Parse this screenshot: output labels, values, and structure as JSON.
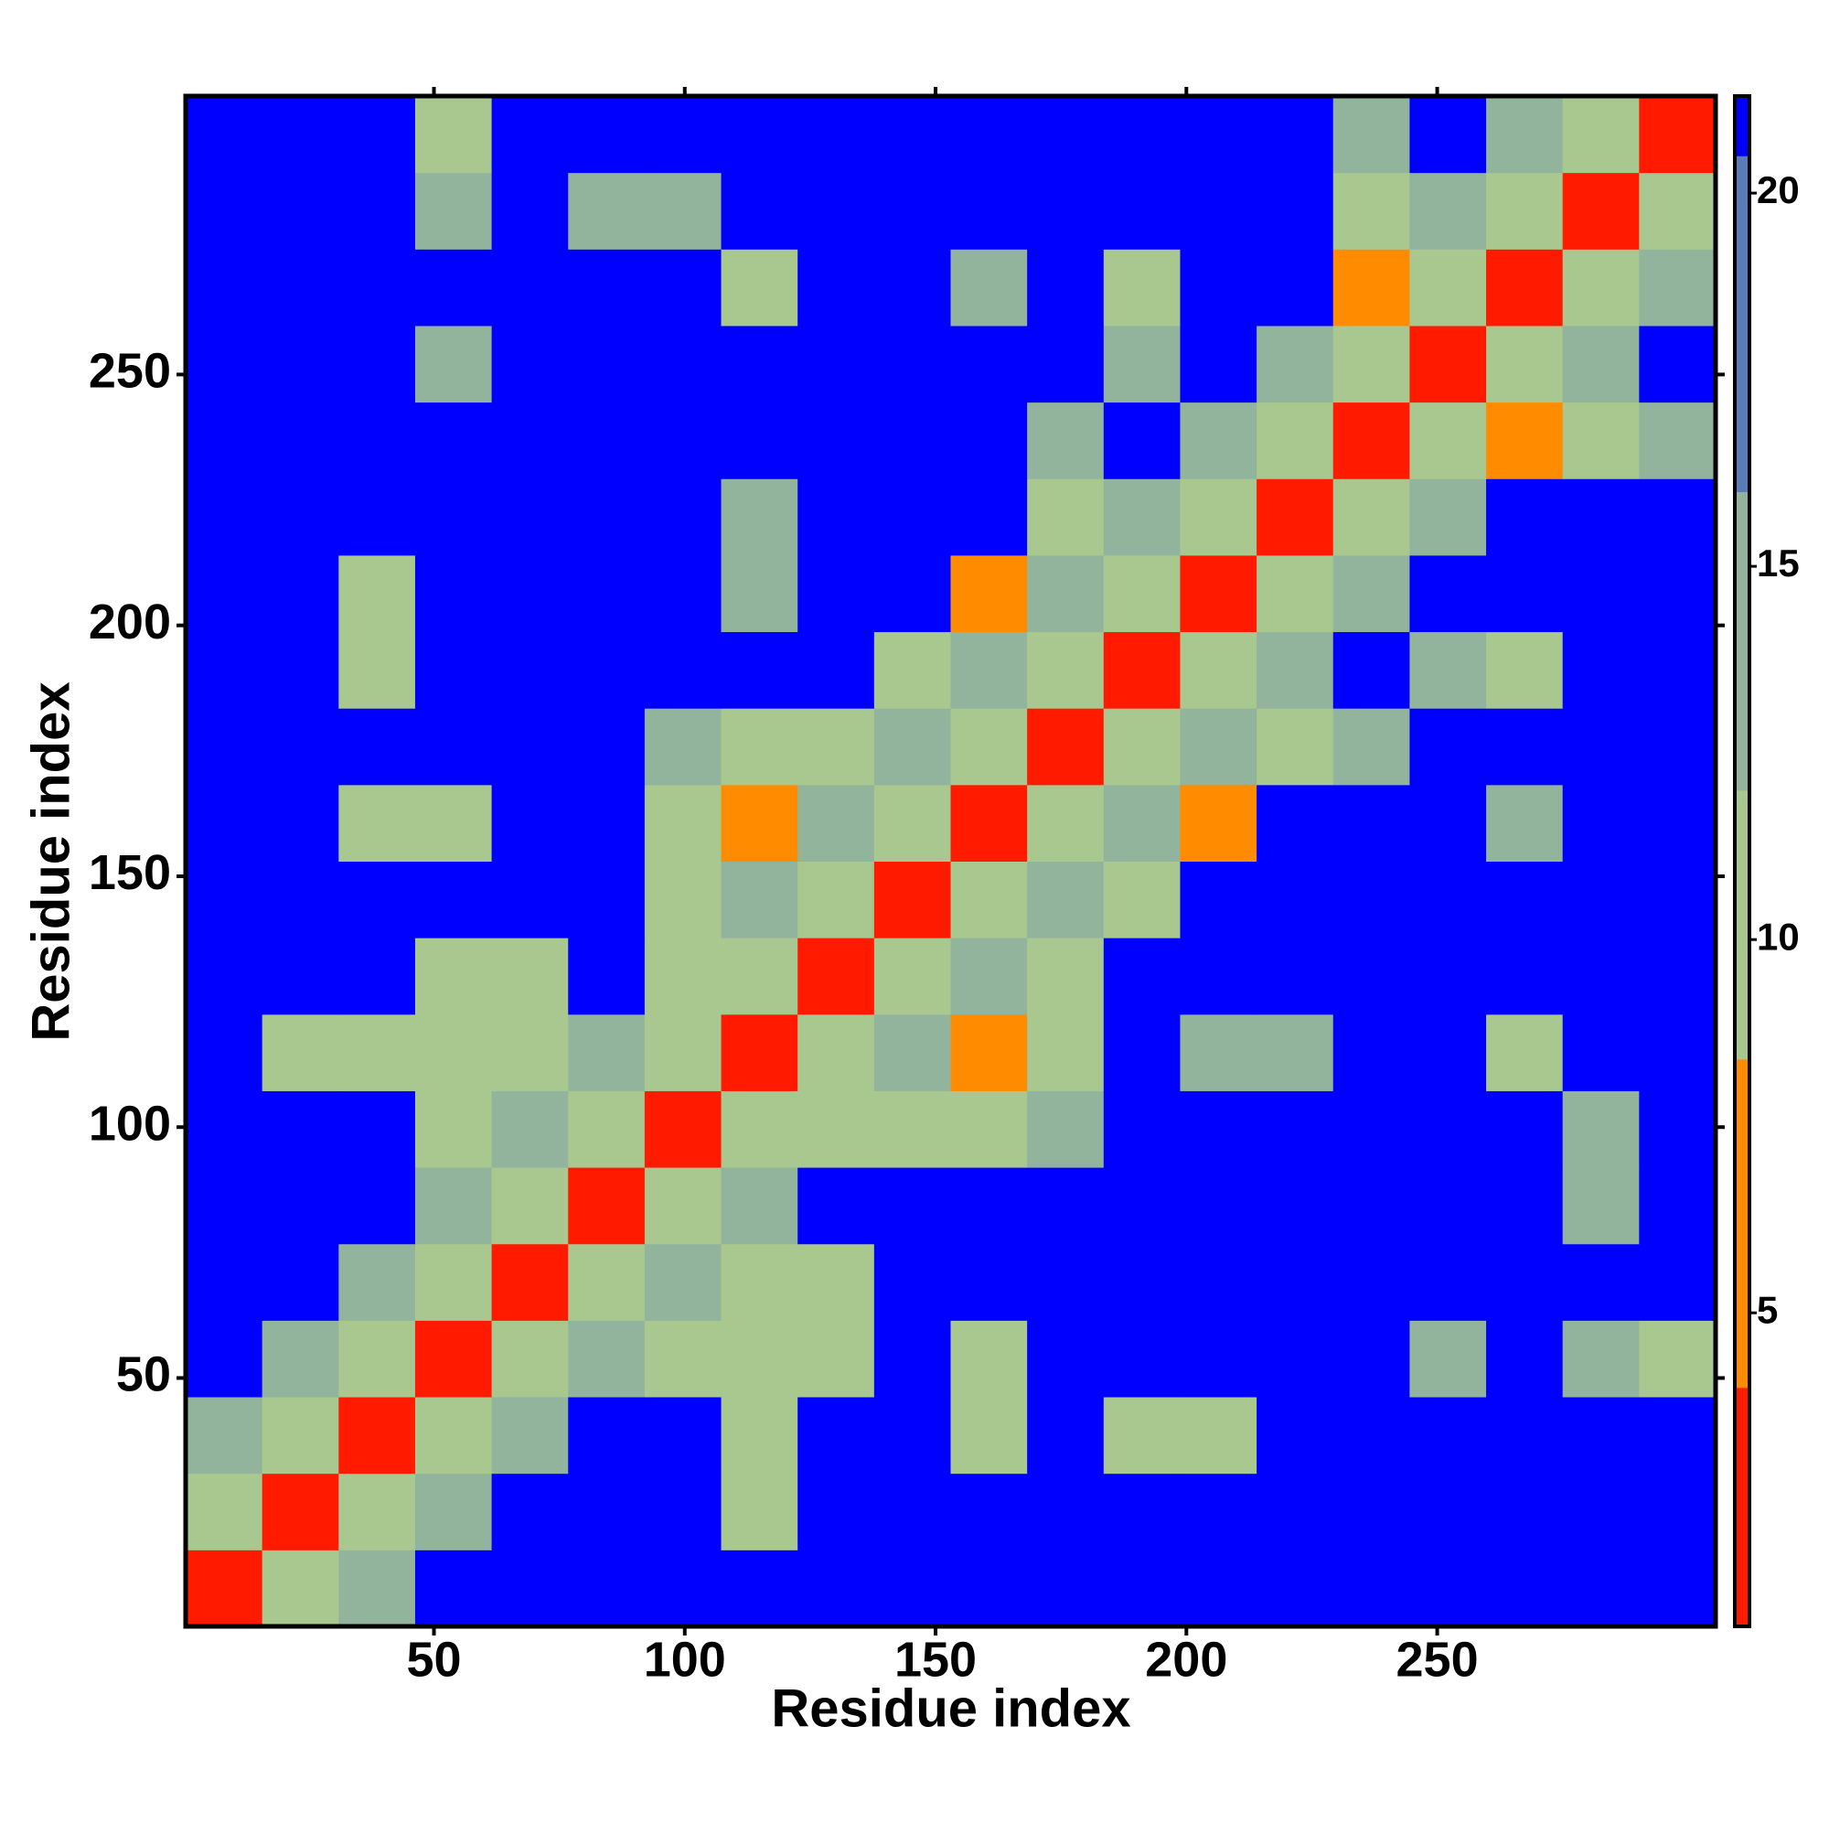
{
  "chart_data": {
    "type": "heatmap",
    "xlabel": "Residue index",
    "ylabel": "Residue index",
    "bins": [
      0.5,
      15.75,
      31,
      46.25,
      61.5,
      76.75,
      92,
      107.25,
      122.5,
      137.75,
      153,
      168.25,
      183.5,
      198.75,
      214,
      229.25,
      244.5,
      259.75,
      275,
      290.25,
      305.5
    ],
    "values": [
      [
        3,
        10,
        14,
        21,
        21,
        21,
        21,
        21,
        21,
        21,
        21,
        21,
        21,
        21,
        21,
        21,
        21,
        21,
        21,
        21
      ],
      [
        10,
        3,
        10,
        14,
        21,
        21,
        21,
        12,
        21,
        21,
        21,
        21,
        21,
        21,
        21,
        21,
        21,
        21,
        21,
        21
      ],
      [
        14,
        10,
        3,
        10,
        14,
        21,
        21,
        11,
        21,
        21,
        10,
        21,
        10,
        10,
        21,
        21,
        21,
        21,
        21,
        21
      ],
      [
        21,
        14,
        10,
        3,
        10,
        14,
        11,
        9,
        11,
        21,
        12,
        21,
        21,
        21,
        21,
        21,
        13,
        21,
        14,
        10
      ],
      [
        21,
        21,
        14,
        10,
        3,
        10,
        14,
        11,
        11,
        21,
        21,
        21,
        21,
        21,
        21,
        21,
        21,
        21,
        21,
        21
      ],
      [
        21,
        21,
        21,
        14,
        10,
        3,
        10,
        14,
        21,
        21,
        21,
        21,
        21,
        21,
        21,
        21,
        21,
        21,
        14,
        21
      ],
      [
        21,
        21,
        21,
        11,
        14,
        10,
        3,
        10,
        11,
        10,
        11,
        13,
        21,
        21,
        21,
        21,
        21,
        21,
        13,
        21
      ],
      [
        21,
        12,
        11,
        9,
        11,
        14,
        10,
        3,
        10,
        14,
        8,
        12,
        21,
        13,
        14,
        21,
        21,
        12,
        21,
        21
      ],
      [
        21,
        21,
        21,
        11,
        11,
        21,
        11,
        10,
        3,
        10,
        14,
        12,
        21,
        21,
        21,
        21,
        21,
        21,
        21,
        21
      ],
      [
        21,
        21,
        21,
        21,
        21,
        21,
        10,
        14,
        10,
        3,
        10,
        14,
        11,
        21,
        21,
        21,
        21,
        21,
        21,
        21
      ],
      [
        21,
        21,
        10,
        12,
        21,
        21,
        11,
        8,
        14,
        10,
        3,
        10,
        14,
        8,
        21,
        21,
        21,
        13,
        21,
        21
      ],
      [
        21,
        21,
        21,
        21,
        21,
        21,
        13,
        12,
        12,
        14,
        10,
        3,
        10,
        14,
        10,
        14,
        21,
        21,
        21,
        21
      ],
      [
        21,
        21,
        10,
        21,
        21,
        21,
        21,
        21,
        21,
        11,
        14,
        10,
        3,
        10,
        14,
        21,
        13,
        11,
        21,
        21
      ],
      [
        21,
        21,
        10,
        21,
        21,
        21,
        21,
        13,
        21,
        21,
        8,
        14,
        10,
        3,
        10,
        14,
        21,
        21,
        21,
        21
      ],
      [
        21,
        21,
        21,
        21,
        21,
        21,
        21,
        14,
        21,
        21,
        21,
        10,
        14,
        10,
        3,
        10,
        15,
        21,
        21,
        21
      ],
      [
        21,
        21,
        21,
        21,
        21,
        21,
        21,
        21,
        21,
        21,
        21,
        14,
        21,
        14,
        10,
        3,
        10,
        8,
        11,
        13
      ],
      [
        21,
        21,
        21,
        13,
        21,
        21,
        21,
        21,
        21,
        21,
        21,
        21,
        13,
        21,
        15,
        10,
        3,
        10,
        14,
        21
      ],
      [
        21,
        21,
        21,
        21,
        21,
        21,
        21,
        12,
        21,
        21,
        13,
        21,
        11,
        21,
        21,
        8,
        10,
        3,
        10,
        14
      ],
      [
        21,
        21,
        21,
        14,
        21,
        14,
        13,
        21,
        21,
        21,
        21,
        21,
        21,
        21,
        21,
        11,
        14,
        10,
        3,
        10
      ],
      [
        21,
        21,
        21,
        10,
        21,
        21,
        21,
        21,
        21,
        21,
        21,
        21,
        21,
        21,
        21,
        13,
        21,
        14,
        10,
        3
      ]
    ],
    "xlim": [
      0.5,
      305.5
    ],
    "ylim": [
      0.5,
      305.5
    ],
    "xticks": [
      50,
      100,
      150,
      200,
      250
    ],
    "yticks": [
      50,
      100,
      150,
      200,
      250
    ],
    "zlim": [
      0.8,
      21.3
    ],
    "zticks": [
      5,
      10,
      15,
      20
    ],
    "color_levels": [
      0.8,
      4,
      8.4,
      12,
      16,
      20.5,
      21.3
    ],
    "colors": [
      "#ff1a00",
      "#ff8c00",
      "#a8c890",
      "#93b49c",
      "#5a7db8",
      "#0000ff"
    ]
  }
}
